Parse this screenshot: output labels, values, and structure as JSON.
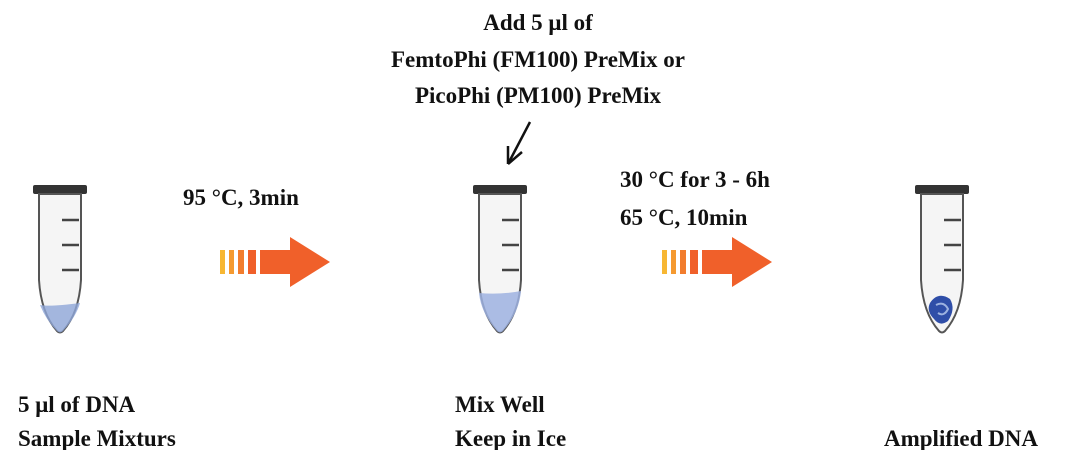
{
  "instruction": {
    "lines": [
      "Add 5 μl of",
      "FemtoPhi (FM100) PreMix or",
      "PicoPhi (PM100) PreMix"
    ]
  },
  "transitions": [
    {
      "lines": [
        "95 °C, 3min"
      ]
    },
    {
      "lines": [
        "30 °C for 3 - 6h",
        "65 °C, 10min"
      ]
    }
  ],
  "steps": [
    {
      "lines": [
        "5 μl of DNA",
        "Sample Mixturs"
      ]
    },
    {
      "lines": [
        "Mix Well",
        "Keep in Ice"
      ]
    },
    {
      "lines": [
        "Amplified DNA"
      ]
    }
  ]
}
